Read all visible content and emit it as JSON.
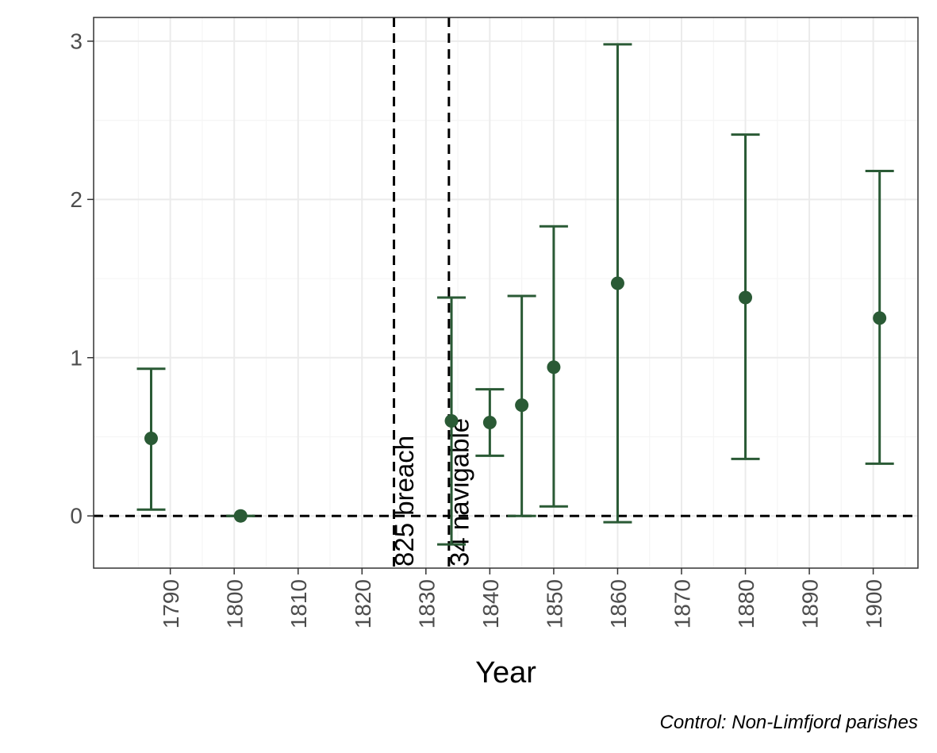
{
  "chart_data": {
    "type": "scatter",
    "subtype": "point-with-error-bars",
    "title": "",
    "xlabel": "Year",
    "ylabel": "",
    "caption": "Control: Non-Limfjord parishes",
    "xlim": [
      1778,
      1907
    ],
    "ylim": [
      -0.33,
      3.15
    ],
    "x_ticks": [
      1790,
      1800,
      1810,
      1820,
      1830,
      1840,
      1850,
      1860,
      1870,
      1880,
      1890,
      1900
    ],
    "y_ticks": [
      0,
      1,
      2,
      3
    ],
    "grid": true,
    "legend": "none",
    "colors": {
      "points": "#2a5a35",
      "reference_lines": "#000000",
      "grid_major": "#ebebeb",
      "grid_minor": "#f5f5f5",
      "panel_border": "#333333"
    },
    "series": [
      {
        "points": [
          {
            "x": 1787,
            "y": 0.49,
            "lower": 0.04,
            "upper": 0.93
          },
          {
            "x": 1801,
            "y": 0.0,
            "lower": 0.0,
            "upper": 0.0
          },
          {
            "x": 1834,
            "y": 0.6,
            "lower": -0.18,
            "upper": 1.38
          },
          {
            "x": 1840,
            "y": 0.59,
            "lower": 0.38,
            "upper": 0.8
          },
          {
            "x": 1845,
            "y": 0.7,
            "lower": 0.0,
            "upper": 1.39
          },
          {
            "x": 1850,
            "y": 0.94,
            "lower": 0.06,
            "upper": 1.83
          },
          {
            "x": 1860,
            "y": 1.47,
            "lower": -0.04,
            "upper": 2.98
          },
          {
            "x": 1880,
            "y": 1.38,
            "lower": 0.36,
            "upper": 2.41
          },
          {
            "x": 1901,
            "y": 1.25,
            "lower": 0.33,
            "upper": 2.18
          }
        ]
      }
    ],
    "reference_lines": {
      "horizontal": [
        0
      ],
      "vertical": [
        1825,
        1833.6
      ]
    },
    "annotations": [
      {
        "x": 1825,
        "text": "825 breach"
      },
      {
        "x": 1833.6,
        "text": "34 navigable"
      }
    ]
  }
}
